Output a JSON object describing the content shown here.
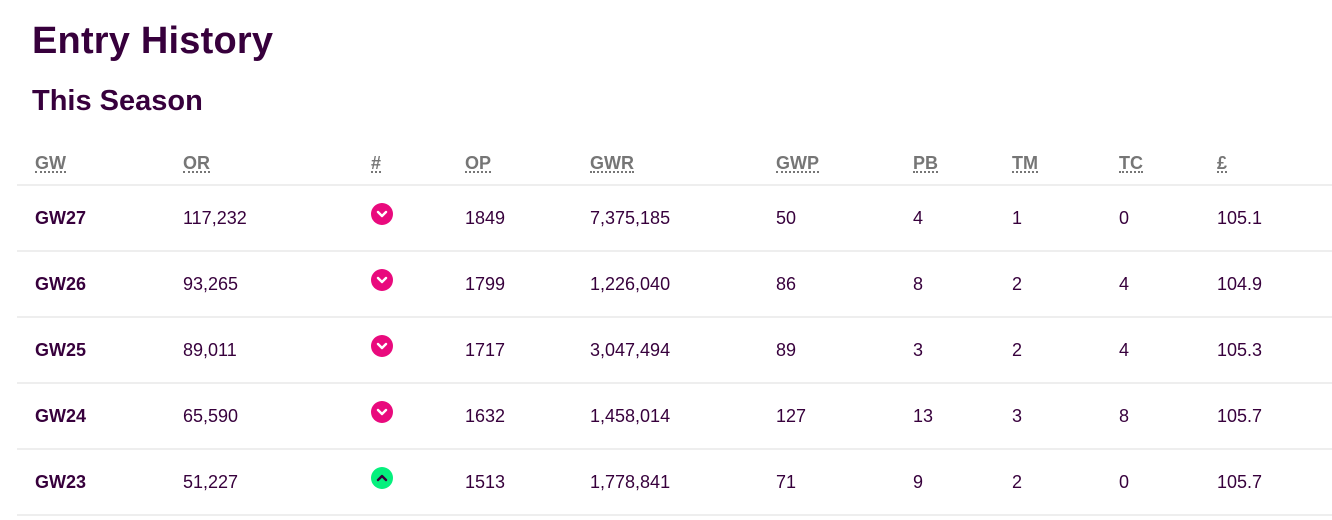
{
  "title": "Entry History",
  "subtitle": "This Season",
  "columns": [
    "GW",
    "OR",
    "#",
    "OP",
    "GWR",
    "GWP",
    "PB",
    "TM",
    "TC",
    "£"
  ],
  "rows": [
    {
      "gw": "GW27",
      "or": "117,232",
      "move": "down",
      "op": "1849",
      "gwr": "7,375,185",
      "gwp": "50",
      "pb": "4",
      "tm": "1",
      "tc": "0",
      "value": "105.1"
    },
    {
      "gw": "GW26",
      "or": "93,265",
      "move": "down",
      "op": "1799",
      "gwr": "1,226,040",
      "gwp": "86",
      "pb": "8",
      "tm": "2",
      "tc": "4",
      "value": "104.9"
    },
    {
      "gw": "GW25",
      "or": "89,011",
      "move": "down",
      "op": "1717",
      "gwr": "3,047,494",
      "gwp": "89",
      "pb": "3",
      "tm": "2",
      "tc": "4",
      "value": "105.3"
    },
    {
      "gw": "GW24",
      "or": "65,590",
      "move": "down",
      "op": "1632",
      "gwr": "1,458,014",
      "gwp": "127",
      "pb": "13",
      "tm": "3",
      "tc": "8",
      "value": "105.7"
    },
    {
      "gw": "GW23",
      "or": "51,227",
      "move": "up",
      "op": "1513",
      "gwr": "1,778,841",
      "gwp": "71",
      "pb": "9",
      "tm": "2",
      "tc": "0",
      "value": "105.7"
    }
  ],
  "colors": {
    "accent": "#37003c",
    "down": "#e90a7d",
    "up": "#05f07d",
    "header": "#767676"
  },
  "icons": {
    "down": "chevron-down-icon",
    "up": "chevron-up-icon"
  }
}
